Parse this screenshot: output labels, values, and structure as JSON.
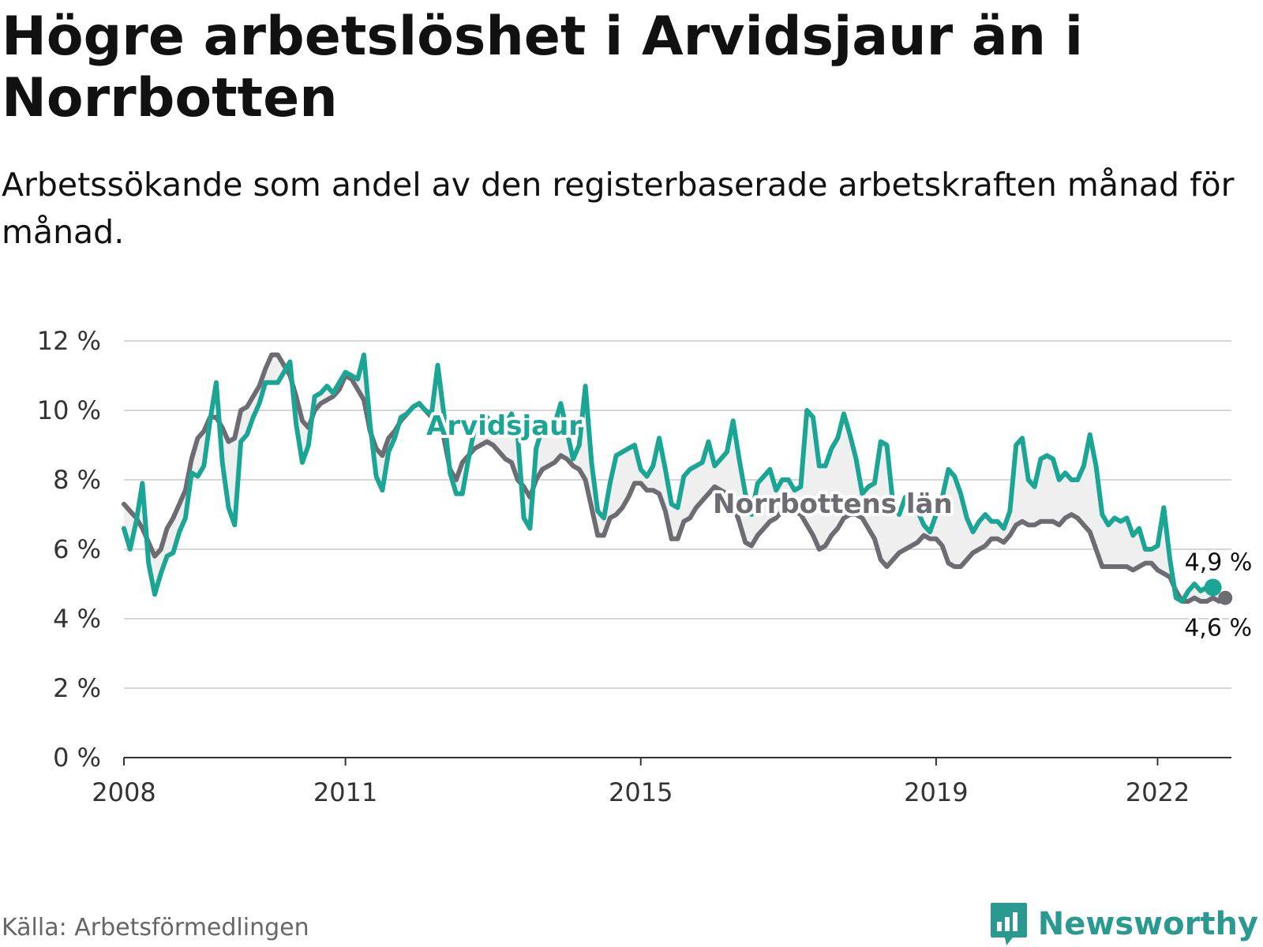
{
  "title": "Högre arbetslöshet i Arvidsjaur än i Norrbotten",
  "subtitle": "Arbetssökande som andel av den registerbaserade arbetskraften månad för månad.",
  "source": "Källa: Arbetsförmedlingen",
  "brand": "Newsworthy",
  "colors": {
    "arvidsjaur": "#1aa595",
    "norrbotten": "#6d6c72",
    "gap_fill": "#efefef",
    "grid": "#d6d6d6",
    "axis": "#333333",
    "brand": "#2a9a90"
  },
  "icons": {
    "brand_logo": "bar-chart-speech-bubble-icon"
  },
  "chart_data": {
    "type": "line",
    "title": "Högre arbetslöshet i Arvidsjaur än i Norrbotten",
    "xlabel": "",
    "ylabel": "",
    "x_start": {
      "year": 2008,
      "month": 1
    },
    "x_unit": "month",
    "xlim": [
      2008.0,
      2023.0
    ],
    "ylim": [
      0,
      12
    ],
    "y_ticks": [
      0,
      2,
      4,
      6,
      8,
      10,
      12
    ],
    "y_tick_labels": [
      "0 %",
      "2 %",
      "4 %",
      "6 %",
      "8 %",
      "10 %",
      "12 %"
    ],
    "x_ticks": [
      2008,
      2011,
      2015,
      2019,
      2022
    ],
    "x_tick_labels": [
      "2008",
      "2011",
      "2015",
      "2019",
      "2022"
    ],
    "grid": true,
    "series": [
      {
        "name": "Arvidsjaur",
        "label": "Arvidsjaur",
        "end_label": "4,9 %",
        "values": [
          6.6,
          6.0,
          6.8,
          7.9,
          5.6,
          4.7,
          5.3,
          5.8,
          5.9,
          6.5,
          6.9,
          8.2,
          8.1,
          8.4,
          9.7,
          10.8,
          8.5,
          7.2,
          6.7,
          9.1,
          9.3,
          9.8,
          10.2,
          10.8,
          10.8,
          10.8,
          11.1,
          11.4,
          9.6,
          8.5,
          9.0,
          10.4,
          10.5,
          10.7,
          10.5,
          10.8,
          11.1,
          11.0,
          10.9,
          11.6,
          9.6,
          8.1,
          7.7,
          8.8,
          9.2,
          9.8,
          9.9,
          10.1,
          10.2,
          10.0,
          9.9,
          11.3,
          9.9,
          8.2,
          7.6,
          7.6,
          8.6,
          9.5,
          9.7,
          9.8,
          9.6,
          9.5,
          9.6,
          9.9,
          9.3,
          6.9,
          6.6,
          8.9,
          9.5,
          9.6,
          9.6,
          10.2,
          9.4,
          8.6,
          9.0,
          10.7,
          8.5,
          7.1,
          6.9,
          7.9,
          8.7,
          8.8,
          8.9,
          9.0,
          8.3,
          8.1,
          8.4,
          9.2,
          8.3,
          7.3,
          7.2,
          8.1,
          8.3,
          8.4,
          8.5,
          9.1,
          8.4,
          8.6,
          8.8,
          9.7,
          8.6,
          7.6,
          7.0,
          7.9,
          8.1,
          8.3,
          7.7,
          8.0,
          8.0,
          7.7,
          7.8,
          10.0,
          9.8,
          8.4,
          8.4,
          8.9,
          9.2,
          9.9,
          9.3,
          8.6,
          7.6,
          7.8,
          7.9,
          9.1,
          9.0,
          7.3,
          7.0,
          7.5,
          7.4,
          7.1,
          6.7,
          6.5,
          7.0,
          7.5,
          8.3,
          8.1,
          7.6,
          6.9,
          6.5,
          6.8,
          7.0,
          6.8,
          6.8,
          6.6,
          7.1,
          9.0,
          9.2,
          8.0,
          7.8,
          8.6,
          8.7,
          8.6,
          8.0,
          8.2,
          8.0,
          8.0,
          8.4,
          9.3,
          8.4,
          7.0,
          6.7,
          6.9,
          6.8,
          6.9,
          6.4,
          6.6,
          6.0,
          6.0,
          6.1,
          7.2,
          5.7,
          4.6,
          4.5,
          4.8,
          5.0,
          4.8,
          4.9,
          4.9
        ]
      },
      {
        "name": "Norrbottens län",
        "label": "Norrbottens län",
        "end_label": "4,6 %",
        "values": [
          7.3,
          7.1,
          6.9,
          6.6,
          6.2,
          5.8,
          6.0,
          6.6,
          6.9,
          7.3,
          7.7,
          8.6,
          9.2,
          9.4,
          9.8,
          9.8,
          9.5,
          9.1,
          9.2,
          10.0,
          10.1,
          10.4,
          10.7,
          11.2,
          11.6,
          11.6,
          11.3,
          11.0,
          10.4,
          9.7,
          9.5,
          10.0,
          10.2,
          10.3,
          10.4,
          10.6,
          11.0,
          10.9,
          10.6,
          10.3,
          9.4,
          8.9,
          8.7,
          9.2,
          9.4,
          9.7,
          9.9,
          10.1,
          10.2,
          10.0,
          9.8,
          9.7,
          9.2,
          8.3,
          8.0,
          8.5,
          8.7,
          8.9,
          9.0,
          9.1,
          9.0,
          8.8,
          8.6,
          8.5,
          8.0,
          7.8,
          7.5,
          8.0,
          8.3,
          8.4,
          8.5,
          8.7,
          8.6,
          8.4,
          8.3,
          8.0,
          7.2,
          6.4,
          6.4,
          6.9,
          7.0,
          7.2,
          7.5,
          7.9,
          7.9,
          7.7,
          7.7,
          7.6,
          7.1,
          6.3,
          6.3,
          6.8,
          6.9,
          7.2,
          7.4,
          7.6,
          7.8,
          7.7,
          7.6,
          7.3,
          6.8,
          6.2,
          6.1,
          6.4,
          6.6,
          6.8,
          6.9,
          7.1,
          7.2,
          7.1,
          7.0,
          6.7,
          6.4,
          6.0,
          6.1,
          6.4,
          6.6,
          6.9,
          7.0,
          7.0,
          6.9,
          6.6,
          6.3,
          5.7,
          5.5,
          5.7,
          5.9,
          6.0,
          6.1,
          6.2,
          6.4,
          6.3,
          6.3,
          6.1,
          5.6,
          5.5,
          5.5,
          5.7,
          5.9,
          6.0,
          6.1,
          6.3,
          6.3,
          6.2,
          6.4,
          6.7,
          6.8,
          6.7,
          6.7,
          6.8,
          6.8,
          6.8,
          6.7,
          6.9,
          7.0,
          6.9,
          6.7,
          6.5,
          6.0,
          5.5,
          5.5,
          5.5,
          5.5,
          5.5,
          5.4,
          5.5,
          5.6,
          5.6,
          5.4,
          5.3,
          5.2,
          4.8,
          4.5,
          4.5,
          4.6,
          4.5,
          4.5,
          4.6,
          4.5,
          4.6
        ]
      }
    ]
  }
}
